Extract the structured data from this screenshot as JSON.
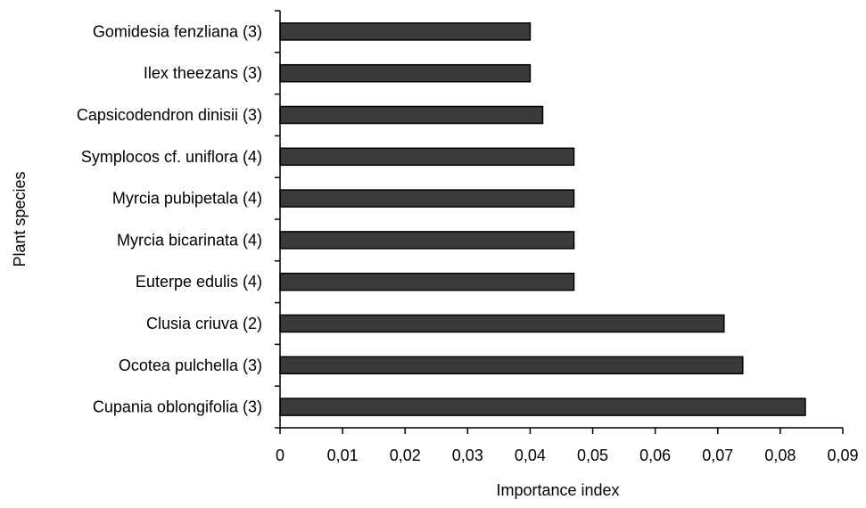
{
  "chart_data": {
    "type": "bar",
    "orientation": "horizontal",
    "categories": [
      "Gomidesia fenzliana (3)",
      "Ilex theezans (3)",
      "Capsicodendron dinisii (3)",
      "Symplocos cf. uniflora (4)",
      "Myrcia pubipetala (4)",
      "Myrcia bicarinata (4)",
      "Euterpe edulis (4)",
      "Clusia criuva (2)",
      "Ocotea pulchella (3)",
      "Cupania oblongifolia (3)"
    ],
    "values": [
      0.04,
      0.04,
      0.042,
      0.047,
      0.047,
      0.047,
      0.047,
      0.071,
      0.074,
      0.084
    ],
    "xlabel": "Importance index",
    "ylabel": "Plant species",
    "xlim": [
      0,
      0.09
    ],
    "xticks": [
      0,
      0.01,
      0.02,
      0.03,
      0.04,
      0.05,
      0.06,
      0.07,
      0.08,
      0.09
    ],
    "xtick_labels": [
      "0",
      "0,01",
      "0,02",
      "0,03",
      "0,04",
      "0,05",
      "0,06",
      "0,07",
      "0,08",
      "0,09"
    ],
    "grid": false,
    "bar_color": "#3a3a3a"
  }
}
